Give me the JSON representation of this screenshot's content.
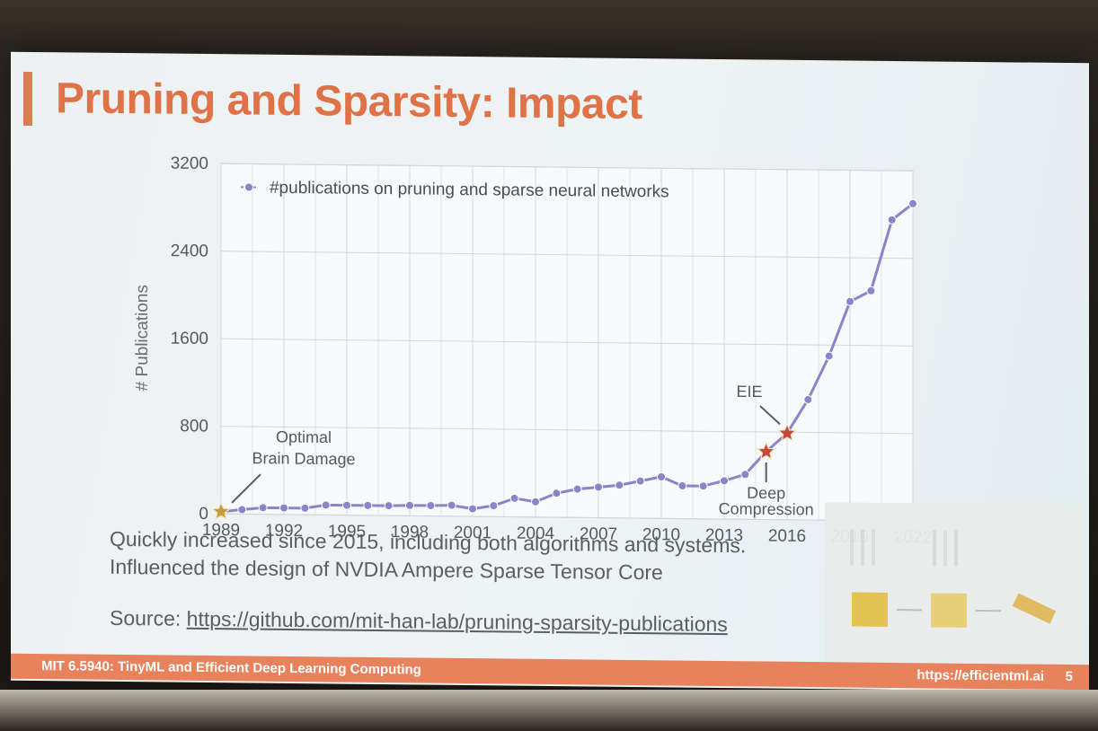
{
  "slide": {
    "title": "Pruning and Sparsity: Impact",
    "caption_line1": "Quickly increased since 2015, including both algorithms and systems.",
    "caption_line2": "Influenced the design of NVDIA Ampere Sparse Tensor Core",
    "source_label": "Source:",
    "source_url": "https://github.com/mit-han-lab/pruning-sparsity-publications",
    "footer_left": "MIT 6.5940: TinyML and Efficient Deep Learning Computing",
    "footer_right": "https://efficientml.ai",
    "page_number": "5"
  },
  "colors": {
    "title": "#e07248",
    "accent": "#e7825c",
    "series": "#8b84c9",
    "star": "#c89a3a",
    "star_red": "#c24a3a"
  },
  "chart_data": {
    "type": "line",
    "ylabel": "# Publications",
    "xlabel": "",
    "xlim": [
      1989,
      2022
    ],
    "ylim": [
      0,
      3200
    ],
    "xticks": [
      1989,
      1992,
      1995,
      1998,
      2001,
      2004,
      2007,
      2010,
      2013,
      2016,
      2019,
      2022
    ],
    "yticks": [
      0,
      800,
      1600,
      2400,
      3200
    ],
    "grid": true,
    "legend_position": "top-left",
    "series": [
      {
        "name": "#publications on pruning and sparse neural networks",
        "x": [
          1989,
          1990,
          1991,
          1992,
          1993,
          1994,
          1995,
          1996,
          1997,
          1998,
          1999,
          2000,
          2001,
          2002,
          2003,
          2004,
          2005,
          2006,
          2007,
          2008,
          2009,
          2010,
          2011,
          2012,
          2013,
          2014,
          2015,
          2016,
          2017,
          2018,
          2019,
          2020,
          2021,
          2022
        ],
        "values": [
          20,
          40,
          60,
          60,
          60,
          90,
          90,
          90,
          90,
          95,
          95,
          100,
          70,
          100,
          170,
          140,
          220,
          260,
          280,
          300,
          340,
          380,
          300,
          300,
          350,
          410,
          620,
          790,
          1100,
          1500,
          2000,
          2100,
          2750,
          2900
        ]
      }
    ],
    "annotations": [
      {
        "text_lines": [
          "Optimal",
          "Brain Damage"
        ],
        "x": 1989,
        "y": 20,
        "marker": "star"
      },
      {
        "text_lines": [
          "EIE"
        ],
        "x": 2016,
        "y": 790,
        "marker": "star"
      },
      {
        "text_lines": [
          "Deep",
          "Compression"
        ],
        "x": 2015,
        "y": 620,
        "marker": "star"
      }
    ]
  }
}
